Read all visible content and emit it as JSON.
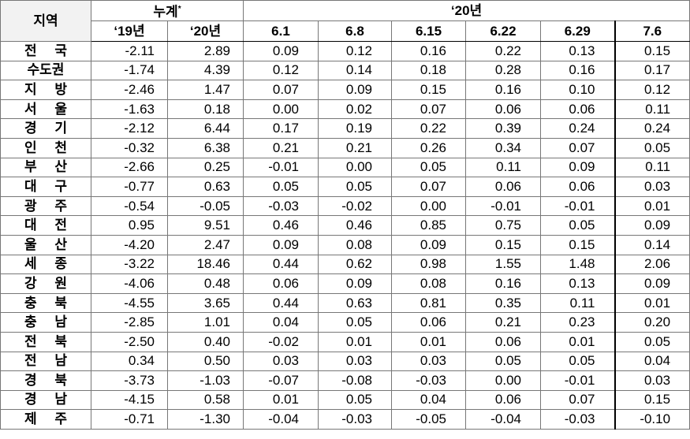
{
  "table": {
    "region_header": "지역",
    "cumulative": {
      "label": "누계",
      "note": "*"
    },
    "weekly_header": "‘20년",
    "columns": [
      "‘19년",
      "‘20년",
      "6.1",
      "6.8",
      "6.15",
      "6.22",
      "6.29",
      "7.6"
    ],
    "rows": [
      [
        "전 국",
        "-2.11",
        "2.89",
        "0.09",
        "0.12",
        "0.16",
        "0.22",
        "0.13",
        "0.15"
      ],
      [
        "수도권",
        "-1.74",
        "4.39",
        "0.12",
        "0.14",
        "0.18",
        "0.28",
        "0.16",
        "0.17"
      ],
      [
        "지 방",
        "-2.46",
        "1.47",
        "0.07",
        "0.09",
        "0.15",
        "0.16",
        "0.10",
        "0.12"
      ],
      [
        "서 울",
        "-1.63",
        "0.18",
        "0.00",
        "0.02",
        "0.07",
        "0.06",
        "0.06",
        "0.11"
      ],
      [
        "경 기",
        "-2.12",
        "6.44",
        "0.17",
        "0.19",
        "0.22",
        "0.39",
        "0.24",
        "0.24"
      ],
      [
        "인 천",
        "-0.32",
        "6.38",
        "0.21",
        "0.21",
        "0.26",
        "0.34",
        "0.07",
        "0.05"
      ],
      [
        "부 산",
        "-2.66",
        "0.25",
        "-0.01",
        "0.00",
        "0.05",
        "0.11",
        "0.09",
        "0.11"
      ],
      [
        "대 구",
        "-0.77",
        "0.63",
        "0.05",
        "0.05",
        "0.07",
        "0.06",
        "0.06",
        "0.03"
      ],
      [
        "광 주",
        "-0.54",
        "-0.05",
        "-0.03",
        "-0.02",
        "0.00",
        "-0.01",
        "-0.01",
        "0.01"
      ],
      [
        "대 전",
        "0.95",
        "9.51",
        "0.46",
        "0.46",
        "0.85",
        "0.75",
        "0.05",
        "0.09"
      ],
      [
        "울 산",
        "-4.20",
        "2.47",
        "0.09",
        "0.08",
        "0.09",
        "0.15",
        "0.15",
        "0.14"
      ],
      [
        "세 종",
        "-3.22",
        "18.46",
        "0.44",
        "0.62",
        "0.98",
        "1.55",
        "1.48",
        "2.06"
      ],
      [
        "강 원",
        "-4.06",
        "0.48",
        "0.06",
        "0.09",
        "0.08",
        "0.16",
        "0.13",
        "0.09"
      ],
      [
        "충 북",
        "-4.55",
        "3.65",
        "0.44",
        "0.63",
        "0.81",
        "0.35",
        "0.11",
        "0.01"
      ],
      [
        "충 남",
        "-2.85",
        "1.01",
        "0.04",
        "0.05",
        "0.06",
        "0.21",
        "0.23",
        "0.20"
      ],
      [
        "전 북",
        "-2.50",
        "0.40",
        "-0.02",
        "0.01",
        "0.01",
        "0.06",
        "0.01",
        "0.05"
      ],
      [
        "전 남",
        "0.34",
        "0.50",
        "0.03",
        "0.03",
        "0.03",
        "0.05",
        "0.05",
        "0.04"
      ],
      [
        "경 북",
        "-3.73",
        "-1.03",
        "-0.07",
        "-0.08",
        "-0.03",
        "0.00",
        "-0.01",
        "0.03"
      ],
      [
        "경 남",
        "-4.15",
        "0.58",
        "0.01",
        "0.05",
        "0.04",
        "0.06",
        "0.07",
        "0.15"
      ],
      [
        "제 주",
        "-0.71",
        "-1.30",
        "-0.04",
        "-0.03",
        "-0.05",
        "-0.04",
        "-0.03",
        "-0.10"
      ]
    ]
  }
}
